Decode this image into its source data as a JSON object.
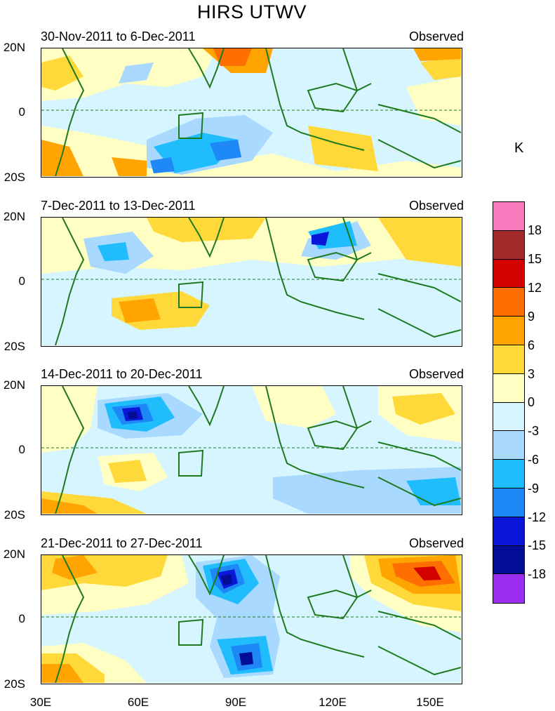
{
  "title": "HIRS UTWV",
  "colorbar": {
    "unit": "K",
    "labels": [
      "18",
      "15",
      "12",
      "9",
      "6",
      "3",
      "0",
      "-3",
      "-6",
      "-9",
      "-12",
      "-15",
      "-18"
    ],
    "colors": [
      "#f77bbd",
      "#a32a2a",
      "#d40000",
      "#ff6e00",
      "#ffa400",
      "#ffd93a",
      "#ffffc4",
      "#d6f5ff",
      "#a9d9ff",
      "#1fbdfb",
      "#1e88f7",
      "#0a16d8",
      "#020c94",
      "#9a2df0"
    ]
  },
  "axes": {
    "y_labels": [
      "20N",
      "0",
      "20S"
    ],
    "x_labels": [
      "30E",
      "60E",
      "90E",
      "120E",
      "150E"
    ]
  },
  "panels": [
    {
      "date_range": "30-Nov-2011 to 6-Dec-2011",
      "type_label": "Observed"
    },
    {
      "date_range": "7-Dec-2011 to 13-Dec-2011",
      "type_label": "Observed"
    },
    {
      "date_range": "14-Dec-2011 to 20-Dec-2011",
      "type_label": "Observed"
    },
    {
      "date_range": "21-Dec-2011 to 27-Dec-2011",
      "type_label": "Observed"
    }
  ]
}
